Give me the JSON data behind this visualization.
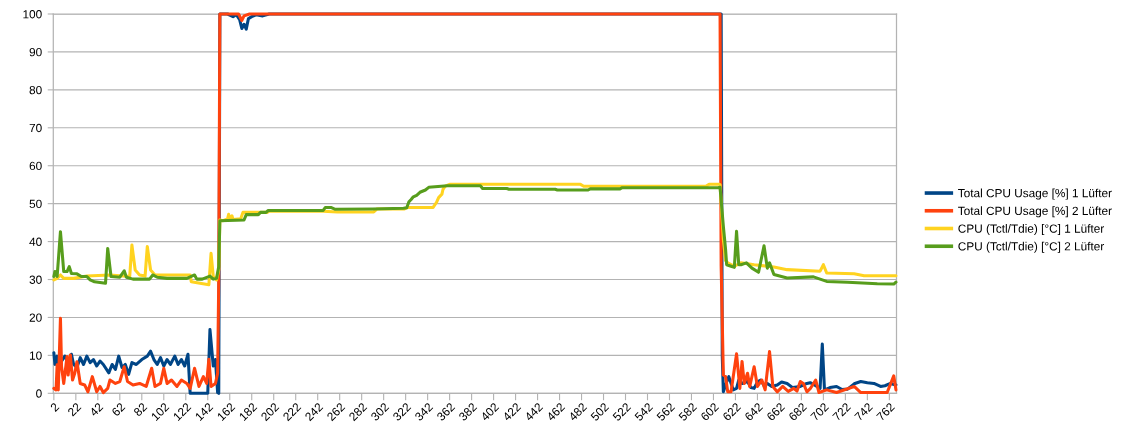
{
  "chart_data": {
    "type": "line",
    "xlim": [
      1.5,
      768.5
    ],
    "xticks": [
      2,
      22,
      42,
      62,
      82,
      102,
      122,
      142,
      162,
      182,
      202,
      222,
      242,
      262,
      282,
      302,
      322,
      342,
      362,
      382,
      402,
      422,
      442,
      462,
      482,
      502,
      522,
      542,
      562,
      582,
      602,
      622,
      642,
      662,
      682,
      702,
      722,
      742,
      762
    ],
    "ylim": [
      0,
      100
    ],
    "yticks": [
      0,
      10,
      20,
      30,
      40,
      50,
      60,
      70,
      80,
      90,
      100
    ],
    "grid": "y",
    "legend": "right",
    "series": [
      {
        "name": "Total CPU Usage [%] 1 Lüfter",
        "color": "#004586",
        "x": [
          2,
          3,
          5,
          6,
          9,
          12,
          15,
          18,
          20,
          23,
          26,
          29,
          32,
          35,
          38,
          41,
          44,
          47,
          52,
          55,
          58,
          61,
          64,
          67,
          70,
          73,
          77,
          82,
          87,
          90,
          93,
          96,
          99,
          102,
          105,
          108,
          112,
          115,
          118,
          121,
          124,
          126,
          142,
          144,
          147,
          149,
          151,
          152,
          153,
          160,
          165,
          168,
          171,
          173,
          175,
          177,
          179,
          182,
          186,
          192,
          198,
          609,
          610,
          611,
          614,
          616,
          617,
          620,
          623,
          625,
          628,
          633,
          636,
          639,
          642,
          645,
          648,
          651,
          655,
          660,
          664,
          669,
          674,
          681,
          686,
          690,
          695,
          699,
          701,
          703,
          708,
          714,
          719,
          724,
          730,
          736,
          742,
          748,
          754,
          758,
          763,
          768
        ],
        "values": [
          10.7,
          7.6,
          9.8,
          7.2,
          8.5,
          9.8,
          8.1,
          10.3,
          7.6,
          6.8,
          9.4,
          7.6,
          9.8,
          8.1,
          8.9,
          7.2,
          8.5,
          7.6,
          5.4,
          7.6,
          6.3,
          9.8,
          6.8,
          7.6,
          5,
          8.1,
          7.6,
          8.9,
          9.8,
          11.1,
          8.9,
          7.6,
          9.4,
          7.2,
          8.9,
          7.6,
          9.8,
          7.6,
          8.9,
          7.2,
          10.3,
          0,
          0,
          16.8,
          7.2,
          8.9,
          0.2,
          0,
          100,
          100,
          99.3,
          99.8,
          98.5,
          96.2,
          97.3,
          96,
          98.8,
          99.3,
          99.8,
          99.5,
          100,
          100,
          10,
          0.4,
          3,
          4.4,
          3.5,
          0.9,
          1.3,
          3.5,
          2.6,
          3.1,
          1.5,
          1.3,
          3,
          3.5,
          2,
          2.6,
          1.8,
          2.2,
          3,
          2.6,
          1.5,
          1.8,
          2.5,
          2.8,
          2,
          1.3,
          13,
          0.9,
          1.5,
          1.8,
          1,
          1.1,
          2.5,
          3.1,
          2.8,
          2.6,
          1.8,
          2,
          2.6,
          2.2
        ]
      },
      {
        "name": "Total CPU Usage [%] 2 Lüfter",
        "color": "#ff420e",
        "x": [
          2,
          4,
          5,
          6,
          8,
          9,
          11,
          14,
          15,
          17,
          19,
          21,
          23,
          26,
          30,
          33,
          37,
          41,
          44,
          47,
          51,
          53,
          58,
          62,
          66,
          69,
          74,
          80,
          86,
          91,
          94,
          99,
          102,
          105,
          109,
          114,
          118,
          123,
          126,
          130,
          134,
          138,
          141,
          143,
          145,
          149,
          151,
          152,
          153,
          170,
          173,
          175,
          180,
          608,
          609,
          611,
          613,
          615,
          618,
          623,
          626,
          628,
          630,
          633,
          635,
          639,
          642,
          646,
          649,
          653,
          656,
          660,
          665,
          670,
          675,
          678,
          681,
          684,
          687,
          690,
          695,
          698,
          705,
          714,
          730,
          736,
          760,
          766,
          768
        ],
        "values": [
          1.3,
          0.9,
          7.5,
          0.9,
          19.8,
          7,
          2.6,
          9.7,
          4.8,
          10.1,
          3.5,
          5.3,
          8.3,
          2.6,
          2.2,
          0.4,
          4.4,
          0.4,
          1.8,
          0.2,
          1.3,
          3.5,
          2.6,
          3.1,
          7,
          3.1,
          2.2,
          2.6,
          1.8,
          6.6,
          1.8,
          2.6,
          6.6,
          2.6,
          3.5,
          1.8,
          3.5,
          2.6,
          1.3,
          6.6,
          1.8,
          4.4,
          2.6,
          9,
          1.8,
          2.6,
          5.3,
          30,
          100,
          100,
          98.3,
          99.5,
          100,
          100,
          33.5,
          4.8,
          4.4,
          0.4,
          0.4,
          10.4,
          1.3,
          8.4,
          2.6,
          5.3,
          1.8,
          7,
          1.8,
          3.5,
          0.9,
          11,
          1.8,
          0.4,
          1.8,
          0.5,
          1.3,
          0.6,
          3.1,
          2.5,
          0.4,
          1.2,
          3.5,
          0.2,
          0.9,
          0.2,
          1.8,
          0.2,
          0.2,
          4.6,
          0.9
        ]
      },
      {
        "name": "CPU (Tctl/Tdie) [°C] 1 Lüfter",
        "color": "#ffd320",
        "x": [
          2,
          5,
          8,
          11,
          20,
          32,
          53,
          71,
          73,
          76,
          80,
          85,
          87,
          90,
          94,
          126,
          127,
          143,
          145,
          147,
          150,
          152,
          153,
          156,
          160,
          161,
          162,
          164,
          165,
          172,
          174,
          196,
          198,
          247,
          260,
          293,
          296,
          321,
          324,
          347,
          350,
          352,
          355,
          356,
          358,
          362,
          481,
          484,
          595,
          598,
          607,
          608,
          611,
          613,
          615,
          621,
          627,
          639,
          651,
          657,
          669,
          699,
          702,
          705,
          730,
          739,
          768
        ],
        "values": [
          29.9,
          30.3,
          31.2,
          30.3,
          30.3,
          30.9,
          31.2,
          30.8,
          39.1,
          32.5,
          31.2,
          30.9,
          38.7,
          32.5,
          31.2,
          31.2,
          29.4,
          28.6,
          36.9,
          30.8,
          29.9,
          32.5,
          45.7,
          45.5,
          46,
          47.2,
          45.8,
          46.8,
          45.8,
          46,
          47.7,
          47.7,
          48,
          48,
          47.8,
          47.8,
          48.6,
          48.6,
          49,
          49,
          50.3,
          51.6,
          52.5,
          53.8,
          54.6,
          55.1,
          55.1,
          54.6,
          54.6,
          55.1,
          55.1,
          55,
          40.5,
          35,
          34.4,
          33.5,
          34.4,
          33.9,
          33.5,
          33.3,
          32.6,
          32.2,
          33.9,
          31.7,
          31.5,
          31,
          31
        ]
      },
      {
        "name": "CPU (Tctl/Tdie) [°C] 2 Lüfter",
        "color": "#579d1c",
        "x": [
          2,
          3,
          5,
          8,
          11,
          14,
          16,
          18,
          23,
          27,
          32,
          35,
          39,
          49,
          51,
          54,
          62,
          66,
          68,
          74,
          89,
          92,
          96,
          105,
          123,
          130,
          132,
          137,
          144,
          147,
          150,
          152,
          153,
          175,
          177,
          188,
          190,
          195,
          197,
          247,
          249,
          254,
          258,
          292,
          320,
          323,
          325,
          327,
          329,
          332,
          335,
          340,
          343,
          360,
          390,
          392,
          414,
          416,
          458,
          460,
          488,
          490,
          517,
          519,
          606,
          608,
          611,
          613,
          614,
          618,
          621,
          623,
          625,
          627,
          632,
          637,
          643,
          648,
          651,
          653,
          657,
          669,
          693,
          705,
          724,
          751,
          766,
          768
        ],
        "values": [
          30.8,
          32.1,
          30.8,
          42.6,
          32.1,
          32.1,
          33.4,
          31.6,
          31.5,
          30.8,
          30.8,
          29.9,
          29.4,
          29,
          38.2,
          30.8,
          30.6,
          32.3,
          30.6,
          30.1,
          30.1,
          31.2,
          30.6,
          30.3,
          30.3,
          31.2,
          30.1,
          30.1,
          30.9,
          30.1,
          30.3,
          33.4,
          45.5,
          45.7,
          47.1,
          47.1,
          47.7,
          47.7,
          48.2,
          48.2,
          49,
          49,
          48.5,
          48.6,
          48.8,
          48.9,
          50.5,
          51.1,
          51.8,
          52.2,
          53,
          53.6,
          54.3,
          54.7,
          54.7,
          54,
          54,
          53.8,
          53.8,
          53.6,
          53.6,
          53.9,
          53.9,
          54.2,
          54.2,
          54.3,
          44,
          38,
          33.9,
          33.5,
          33.2,
          42.7,
          33.9,
          33.9,
          34.4,
          33,
          31.9,
          38.9,
          33,
          34.4,
          31.3,
          30.4,
          30.7,
          29.5,
          29.3,
          28.9,
          28.8,
          29.3
        ]
      }
    ]
  }
}
